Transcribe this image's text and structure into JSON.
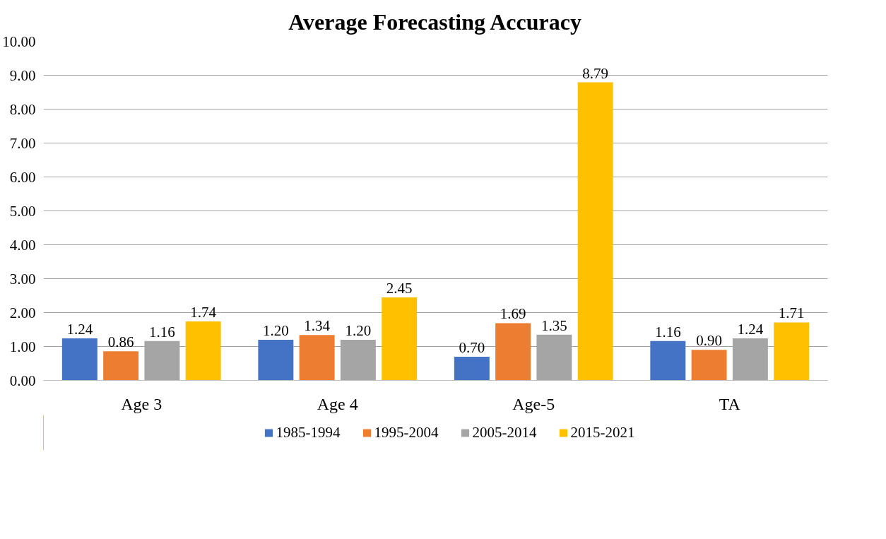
{
  "chart_data": {
    "type": "bar",
    "title": "Average Forecasting Accuracy",
    "categories": [
      "Age 3",
      "Age 4",
      "Age-5",
      "TA"
    ],
    "series": [
      {
        "name": "1985-1994",
        "color": "#4472c4",
        "values": [
          1.24,
          1.2,
          0.7,
          1.16
        ],
        "value_labels": [
          "1.24",
          "1.20",
          "0.70",
          "1.16"
        ]
      },
      {
        "name": "1995-2004",
        "color": "#ed7d31",
        "values": [
          0.86,
          1.34,
          1.69,
          0.9
        ],
        "value_labels": [
          "0.86",
          "1.34",
          "1.69",
          "0.90"
        ]
      },
      {
        "name": "2005-2014",
        "color": "#a5a5a5",
        "values": [
          1.16,
          1.2,
          1.35,
          1.24
        ],
        "value_labels": [
          "1.16",
          "1.20",
          "1.35",
          "1.24"
        ]
      },
      {
        "name": "2015-2021",
        "color": "#ffc000",
        "values": [
          1.74,
          2.45,
          8.79,
          1.71
        ],
        "value_labels": [
          "1.74",
          "2.45",
          "8.79",
          "1.71"
        ]
      }
    ],
    "ylim": [
      0,
      10
    ],
    "yticks": [
      {
        "value": 0,
        "label": "0.00"
      },
      {
        "value": 1,
        "label": "1.00"
      },
      {
        "value": 2,
        "label": "2.00"
      },
      {
        "value": 3,
        "label": "3.00"
      },
      {
        "value": 4,
        "label": "4.00"
      },
      {
        "value": 5,
        "label": "5.00"
      },
      {
        "value": 6,
        "label": "6.00"
      },
      {
        "value": 7,
        "label": "7.00"
      },
      {
        "value": 8,
        "label": "8.00"
      },
      {
        "value": 9,
        "label": "9.00"
      },
      {
        "value": 10,
        "label": "10.00"
      }
    ],
    "grid": "y",
    "legend": "bottom"
  }
}
